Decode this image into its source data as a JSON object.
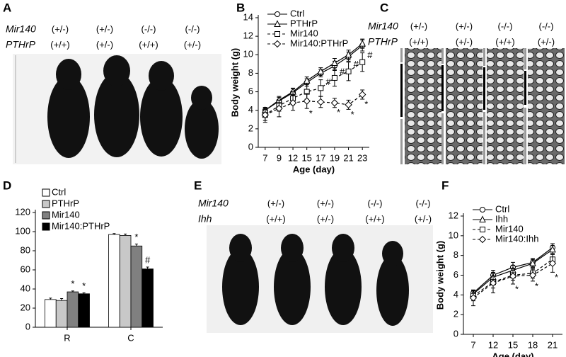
{
  "panel_labels": [
    "A",
    "B",
    "C",
    "D",
    "E",
    "F"
  ],
  "panel_a": {
    "gene_labels": [
      "Mir140",
      "PTHrP"
    ],
    "genotypes": [
      [
        "(+/-)",
        "(+/-)",
        "(-/-)",
        "(-/-)"
      ],
      [
        "(+/+)",
        "(+/-)",
        "(+/+)",
        "(+/-)"
      ]
    ]
  },
  "panel_c": {
    "gene_labels": [
      "Mir140",
      "PTHrP"
    ],
    "genotypes": [
      [
        "(+/-)",
        "(+/-)",
        "(-/-)",
        "(-/-)"
      ],
      [
        "(+/+)",
        "(+/-)",
        "(+/+)",
        "(+/-)"
      ]
    ]
  },
  "panel_e": {
    "gene_labels": [
      "Mir140",
      "Ihh"
    ],
    "genotypes": [
      [
        "(+/-)",
        "(+/-)",
        "(-/-)",
        "(-/-)"
      ],
      [
        "(+/+)",
        "(+/-)",
        "(+/+)",
        "(+/-)"
      ]
    ]
  },
  "chart_data": [
    {
      "type": "line",
      "x_label": "Age (day)",
      "y_label": "Body weight (g)",
      "categories": [
        7,
        9,
        12,
        15,
        17,
        19,
        21,
        23
      ],
      "ylim": [
        0,
        14
      ],
      "yticks": [
        0,
        2,
        4,
        6,
        8,
        10,
        12,
        14
      ],
      "series": [
        {
          "name": "Ctrl",
          "color": "#000000",
          "marker": "circle",
          "line_style": "solid",
          "values": [
            4.0,
            5.0,
            5.9,
            7.0,
            8.0,
            8.8,
            9.8,
            11.0
          ],
          "errors": [
            0.3,
            0.4,
            0.4,
            0.4,
            0.4,
            0.5,
            0.5,
            0.6
          ],
          "significance": [
            null,
            null,
            null,
            null,
            null,
            null,
            null,
            null
          ]
        },
        {
          "name": "PTHrP",
          "color": "#000000",
          "marker": "triangle",
          "line_style": "solid",
          "values": [
            4.0,
            5.1,
            6.0,
            7.2,
            8.2,
            9.1,
            10.0,
            11.2
          ],
          "errors": [
            0.3,
            0.4,
            0.4,
            0.4,
            0.4,
            0.5,
            0.5,
            0.5
          ],
          "significance": [
            null,
            null,
            null,
            null,
            null,
            null,
            null,
            null
          ]
        },
        {
          "name": "Mir140",
          "color": "#000000",
          "marker": "square",
          "line_style": "dashed",
          "values": [
            3.5,
            4.5,
            5.3,
            6.0,
            6.4,
            7.5,
            8.2,
            9.2
          ],
          "errors": [
            0.6,
            0.6,
            0.7,
            0.8,
            0.9,
            0.9,
            1.0,
            1.0
          ],
          "significance": [
            null,
            null,
            null,
            null,
            "#",
            "#",
            "#",
            "#"
          ]
        },
        {
          "name": "Mir140:PTHrP",
          "color": "#000000",
          "marker": "diamond",
          "line_style": "dashed",
          "values": [
            3.5,
            4.2,
            4.8,
            5.0,
            4.9,
            4.8,
            4.6,
            5.7
          ],
          "errors": [
            0.8,
            0.9,
            0.8,
            0.8,
            0.6,
            0.5,
            0.5,
            0.5
          ],
          "significance": [
            null,
            null,
            null,
            "*",
            null,
            "*",
            "*",
            "*"
          ]
        }
      ]
    },
    {
      "type": "bar",
      "categories": [
        "R",
        "C"
      ],
      "ylim": [
        0,
        120
      ],
      "yticks": [
        0,
        20,
        40,
        60,
        80,
        100,
        120
      ],
      "series": [
        {
          "name": "Ctrl",
          "color": "#ffffff",
          "values": [
            29,
            97
          ],
          "errors": [
            1.5,
            1
          ],
          "significance": [
            null,
            null
          ]
        },
        {
          "name": "PTHrP",
          "color": "#c8c8c8",
          "values": [
            28,
            96
          ],
          "errors": [
            2,
            1.5
          ],
          "significance": [
            null,
            null
          ]
        },
        {
          "name": "Mir140",
          "color": "#808080",
          "values": [
            37,
            85
          ],
          "errors": [
            1,
            2
          ],
          "significance": [
            "*",
            "*"
          ]
        },
        {
          "name": "Mir140:PTHrP",
          "color": "#000000",
          "values": [
            35,
            61
          ],
          "errors": [
            1,
            2
          ],
          "significance": [
            "*",
            "#"
          ]
        }
      ]
    },
    {
      "type": "line",
      "x_label": "Age (day)",
      "y_label": "Body weight (g)",
      "categories": [
        7,
        12,
        15,
        18,
        21
      ],
      "ylim": [
        0,
        12
      ],
      "yticks": [
        0,
        2,
        4,
        6,
        8,
        10,
        12
      ],
      "series": [
        {
          "name": "Ctrl",
          "color": "#000000",
          "marker": "circle",
          "line_style": "solid",
          "values": [
            4.2,
            6.0,
            6.8,
            7.3,
            8.8
          ],
          "errors": [
            0.3,
            0.5,
            0.5,
            0.4,
            0.4
          ],
          "significance": [
            null,
            null,
            null,
            null,
            null
          ]
        },
        {
          "name": "Ihh",
          "color": "#000000",
          "marker": "triangle",
          "line_style": "solid",
          "values": [
            4.1,
            5.8,
            6.5,
            7.2,
            8.6
          ],
          "errors": [
            0.3,
            0.5,
            0.5,
            0.4,
            0.4
          ],
          "significance": [
            null,
            null,
            null,
            null,
            null
          ]
        },
        {
          "name": "Mir140",
          "color": "#000000",
          "marker": "square",
          "line_style": "dashed",
          "values": [
            3.9,
            5.3,
            6.0,
            6.2,
            7.6
          ],
          "errors": [
            0.5,
            0.6,
            0.5,
            0.5,
            0.5
          ],
          "significance": [
            null,
            null,
            null,
            null,
            null
          ]
        },
        {
          "name": "Mir140:Ihh",
          "color": "#000000",
          "marker": "diamond",
          "line_style": "dashed",
          "values": [
            3.7,
            5.2,
            5.9,
            6.0,
            7.2
          ],
          "errors": [
            0.8,
            1.0,
            0.8,
            0.6,
            0.9
          ],
          "significance": [
            null,
            null,
            "*",
            "*",
            "*"
          ]
        }
      ]
    }
  ]
}
